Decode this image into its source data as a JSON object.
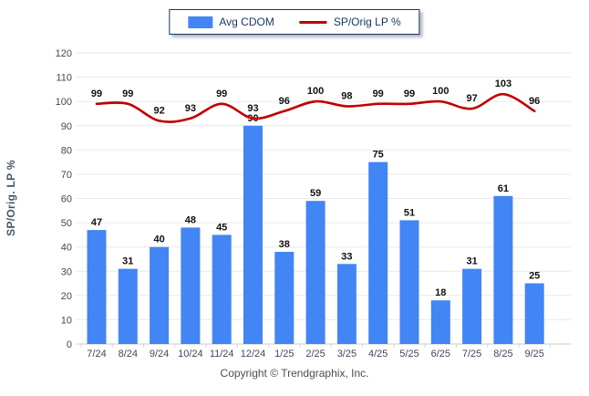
{
  "legend": {
    "items": [
      {
        "label": "Avg CDOM",
        "type": "bar",
        "color": "#4285f4"
      },
      {
        "label": "SP/Orig LP %",
        "type": "line",
        "color": "#c00000"
      }
    ]
  },
  "footer": {
    "copyright": "Copyright © Trendgraphix, Inc."
  },
  "chart_data": {
    "type": "bar",
    "title": "",
    "xlabel": "",
    "ylabel": "SP/Orig. LP %",
    "categories": [
      "7/24",
      "8/24",
      "9/24",
      "10/24",
      "11/24",
      "12/24",
      "1/25",
      "2/25",
      "3/25",
      "4/25",
      "5/25",
      "6/25",
      "7/25",
      "8/25",
      "9/25"
    ],
    "series": [
      {
        "name": "Avg CDOM",
        "type": "bar",
        "color": "#4285f4",
        "values": [
          47,
          31,
          40,
          48,
          45,
          90,
          38,
          59,
          33,
          75,
          51,
          18,
          31,
          61,
          25
        ]
      },
      {
        "name": "SP/Orig LP %",
        "type": "line",
        "color": "#c00000",
        "values": [
          99,
          99,
          92,
          93,
          99,
          93,
          96,
          100,
          98,
          99,
          99,
          100,
          97,
          103,
          96
        ]
      }
    ],
    "ylim": [
      0,
      120
    ],
    "ytick_step": 10,
    "grid": true,
    "legend_position": "top-center",
    "colors": {
      "gridline": "#e9e9e9",
      "axis": "#c9c9c9",
      "tick_text": "#40465a",
      "data_label": "#111111"
    }
  }
}
